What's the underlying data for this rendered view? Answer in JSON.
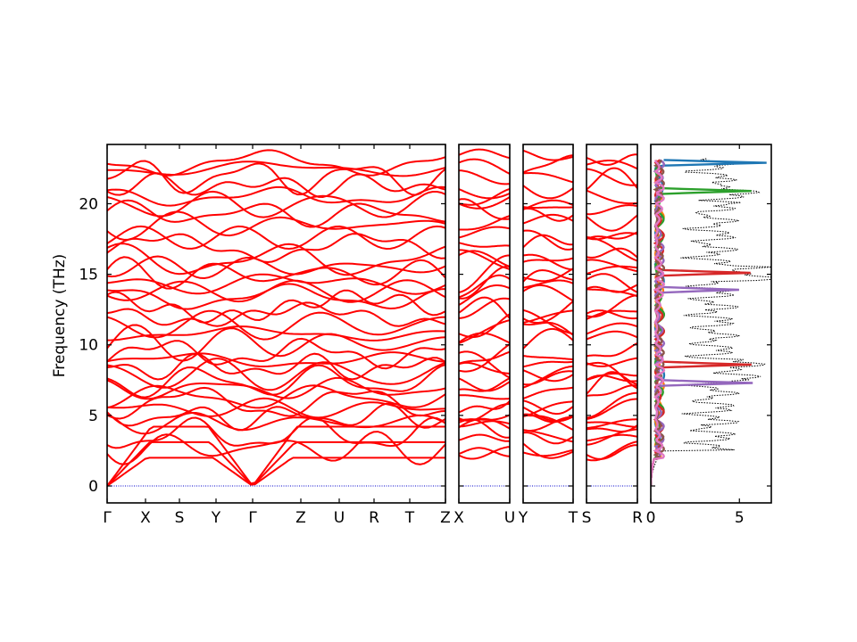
{
  "chart_data": {
    "type": "line",
    "ylabel": "Frequency (THz)",
    "ylim": [
      -1.2,
      24.2
    ],
    "yticks": [
      0,
      5,
      10,
      15,
      20
    ],
    "zero_line_color": "#0000cc",
    "band_color": "#ff0000",
    "band_panels": [
      {
        "xticks": [
          "Γ",
          "X",
          "S",
          "Y",
          "Γ",
          "Z",
          "U",
          "R",
          "T",
          "Z"
        ]
      },
      {
        "xticks": [
          "X",
          "U"
        ]
      },
      {
        "xticks": [
          "Y",
          "T"
        ]
      },
      {
        "xticks": [
          "S",
          "R"
        ]
      }
    ],
    "dos_panel": {
      "xlabel": "",
      "xlim": [
        0,
        6.8
      ],
      "xticks": [
        0,
        5
      ],
      "total_dos_style": "black dotted",
      "partial_dos_colors": [
        "#1f77b4",
        "#ff7f0e",
        "#2ca02c",
        "#d62728",
        "#9467bd",
        "#8c564b",
        "#e377c2"
      ],
      "partial_dos_peaks": [
        {
          "color": "#1f77b4",
          "freq": 22.9,
          "dos": 6.2
        },
        {
          "color": "#2ca02c",
          "freq": 20.9,
          "dos": 5.4
        },
        {
          "color": "#d62728",
          "freq": 15.1,
          "dos": 5.3
        },
        {
          "color": "#9467bd",
          "freq": 13.9,
          "dos": 4.6
        },
        {
          "color": "#d62728",
          "freq": 8.6,
          "dos": 5.3
        },
        {
          "color": "#9467bd",
          "freq": 7.3,
          "dos": 5.4
        }
      ]
    },
    "band_frequencies_at_gamma": [
      0,
      0,
      0,
      2.7,
      3.6,
      4.5,
      4.9,
      5.5,
      5.9,
      6.3,
      6.9,
      7.4,
      7.9,
      8.4,
      8.9,
      9.4,
      10.1,
      10.8,
      11.4,
      12.1,
      12.7,
      13.4,
      13.8,
      14.4,
      15.0,
      15.5,
      16.0,
      16.9,
      17.6,
      18.5,
      19.3,
      19.9,
      20.5,
      21.3,
      21.9,
      22.5,
      22.9
    ]
  }
}
